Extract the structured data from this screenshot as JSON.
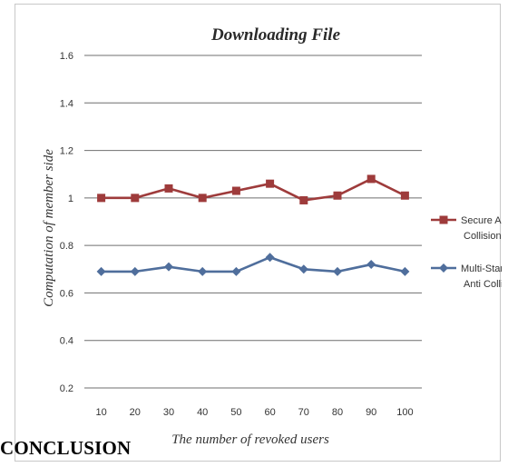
{
  "chart_data": {
    "type": "line",
    "title": "Downloading File",
    "xlabel": "The number of revoked users",
    "ylabel": "Computation of member side",
    "categories": [
      "10",
      "20",
      "30",
      "40",
      "50",
      "60",
      "70",
      "80",
      "90",
      "100"
    ],
    "ylim": [
      0.2,
      1.6
    ],
    "yticks": [
      "0.2",
      "0.4",
      "0.6",
      "0.8",
      "1",
      "1.2",
      "1.4",
      "1.6"
    ],
    "grid": true,
    "legend_position": "right",
    "series": [
      {
        "name": "Secure Anti Collision",
        "name_lines": [
          "Secure Anti",
          "Collision"
        ],
        "marker": "square",
        "color": "#9e3b3b",
        "values": [
          1.0,
          1.0,
          1.04,
          1.0,
          1.03,
          1.06,
          0.99,
          1.01,
          1.08,
          1.01
        ]
      },
      {
        "name": "Multi-Start Anti Collision",
        "name_lines": [
          "Multi-Start",
          "Anti Collision"
        ],
        "marker": "diamond",
        "color": "#4f6e9c",
        "values": [
          0.69,
          0.69,
          0.71,
          0.69,
          0.69,
          0.75,
          0.7,
          0.69,
          0.72,
          0.69
        ]
      }
    ]
  },
  "document": {
    "section_heading": "CONCLUSION"
  }
}
